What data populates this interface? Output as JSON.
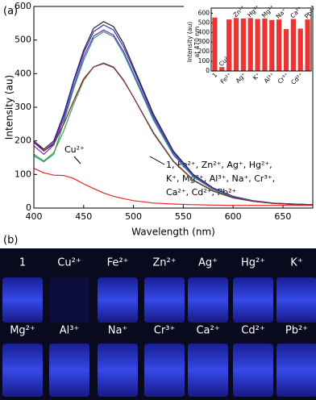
{
  "panel_labels": [
    "(a)",
    "(b)"
  ],
  "chart_data": [
    {
      "type": "line",
      "xlabel": "Wavelength (nm)",
      "ylabel": "Intensity (au)",
      "x": [
        400,
        410,
        420,
        430,
        440,
        450,
        460,
        470,
        480,
        490,
        500,
        520,
        540,
        560,
        580,
        600,
        620,
        640,
        660,
        680
      ],
      "xlim": [
        400,
        680
      ],
      "xticks": [
        400,
        450,
        500,
        550,
        600,
        650
      ],
      "ylim": [
        0,
        600
      ],
      "yticks": [
        0,
        100,
        200,
        300,
        400,
        500,
        600
      ],
      "series": [
        {
          "color": "#222222",
          "values": [
            200,
            175,
            200,
            280,
            380,
            470,
            535,
            555,
            540,
            490,
            420,
            280,
            170,
            100,
            60,
            35,
            22,
            15,
            12,
            10
          ]
        },
        {
          "color": "#2233cc",
          "values": [
            195,
            170,
            195,
            275,
            375,
            462,
            525,
            545,
            530,
            480,
            412,
            275,
            167,
            98,
            58,
            34,
            22,
            15,
            12,
            10
          ]
        },
        {
          "color": "#8a2a9a",
          "values": [
            185,
            160,
            188,
            265,
            362,
            450,
            512,
            530,
            515,
            467,
            400,
            268,
            162,
            95,
            57,
            33,
            21,
            14,
            11,
            10
          ]
        },
        {
          "color": "#20a090",
          "values": [
            155,
            138,
            160,
            255,
            355,
            440,
            505,
            525,
            510,
            460,
            395,
            262,
            158,
            93,
            55,
            32,
            21,
            14,
            11,
            10
          ]
        },
        {
          "color": "#3aa040",
          "values": [
            160,
            140,
            165,
            230,
            310,
            380,
            420,
            432,
            420,
            382,
            330,
            222,
            138,
            82,
            50,
            30,
            20,
            14,
            11,
            10
          ]
        },
        {
          "color": "#8a2040",
          "values": [
            200,
            170,
            190,
            250,
            320,
            385,
            420,
            430,
            418,
            380,
            330,
            225,
            140,
            84,
            51,
            31,
            20,
            14,
            11,
            10
          ]
        },
        {
          "color": "#ee2222",
          "values": [
            118,
            105,
            98,
            97,
            88,
            72,
            58,
            45,
            35,
            28,
            22,
            15,
            12,
            10,
            9,
            8,
            8,
            8,
            8,
            8
          ]
        }
      ],
      "annotations": [
        "Cu²⁺",
        "1, Fe²⁺, Zn²⁺, Ag⁺, Hg²⁺,",
        "K⁺, Mg²⁺, Al³⁺, Na⁺, Cr³⁺,",
        "Ca²⁺, Cd²⁺, Pb²⁺"
      ]
    },
    {
      "type": "bar",
      "ylabel": [
        "Intensity (au)",
        "at 470 nm"
      ],
      "categories": [
        "1",
        "Cu²⁺",
        "Fe²⁺",
        "Zn²⁺",
        "Ag⁺",
        "Hg²⁺",
        "K⁺",
        "Mg²⁺",
        "Al³⁺",
        "Na⁺",
        "Cr³⁺",
        "Ca²⁺",
        "Cd²⁺",
        "Pb²⁺"
      ],
      "values": [
        555,
        40,
        535,
        550,
        545,
        550,
        540,
        545,
        530,
        535,
        435,
        540,
        440,
        535
      ],
      "color": "#ee3333",
      "ylim": [
        0,
        620
      ],
      "yticks": [
        0,
        100,
        200,
        300,
        400,
        500,
        600
      ]
    }
  ],
  "photo": {
    "row1": [
      "1",
      "Cu²⁺",
      "Fe²⁺",
      "Zn²⁺",
      "Ag⁺",
      "Hg²⁺",
      "K⁺"
    ],
    "row2": [
      "Mg²⁺",
      "Al³⁺",
      "Na⁺",
      "Cr³⁺",
      "Ca²⁺",
      "Cd²⁺",
      "Pb²⁺"
    ]
  }
}
